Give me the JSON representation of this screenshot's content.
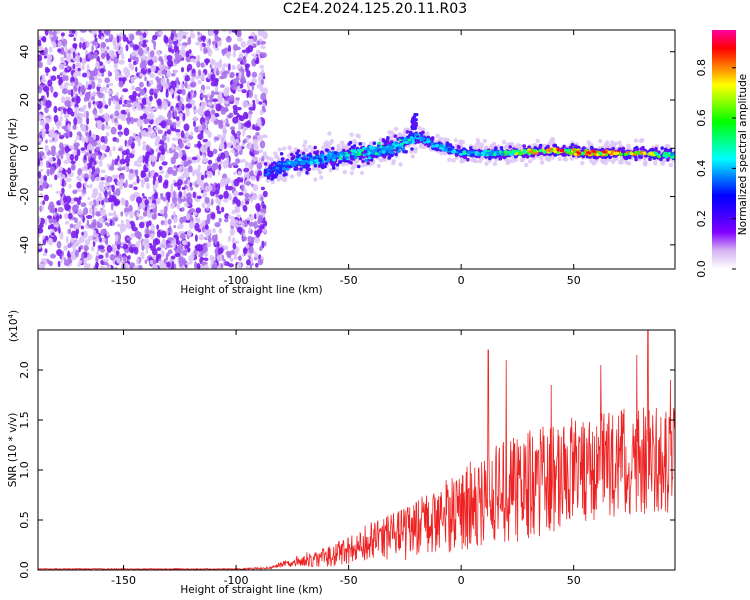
{
  "title": "C2E4.2024.125.20.11.R03",
  "colors": {
    "background": "#ffffff",
    "axis": "#000000",
    "snr_line": "#ee2222",
    "spectro_noise": "#8a2be2",
    "colorbar": [
      "#ffffff",
      "#d6b3f2",
      "#8000ff",
      "#3b00ff",
      "#0000ff",
      "#0080ff",
      "#00ffff",
      "#00ff80",
      "#00ff00",
      "#80ff00",
      "#ffff00",
      "#ff8000",
      "#ff0000",
      "#ff00a0"
    ]
  },
  "chart_data": [
    {
      "type": "heatmap",
      "xlabel": "Height of straight line (km)",
      "ylabel": "Frequency (Hz)",
      "xlim": [
        -188,
        95
      ],
      "ylim": [
        -50,
        49
      ],
      "xticks": [
        -150,
        -100,
        -50,
        0,
        50
      ],
      "yticks": [
        -40,
        -20,
        0,
        20,
        40
      ],
      "description": "spectrogram: broadband noise for x < -87 km; narrow-band signal near 0 Hz from about -87 km to 95 km, strongest (red) near 30-90 km",
      "signal_track": [
        {
          "x": -88,
          "f": -10,
          "amp": 0.4
        },
        {
          "x": -75,
          "f": -6,
          "amp": 0.45
        },
        {
          "x": -60,
          "f": -4,
          "amp": 0.5
        },
        {
          "x": -45,
          "f": -2,
          "amp": 0.55
        },
        {
          "x": -30,
          "f": 0,
          "amp": 0.55
        },
        {
          "x": -20,
          "f": 5,
          "amp": 0.5
        },
        {
          "x": -10,
          "f": 1,
          "amp": 0.5
        },
        {
          "x": 0,
          "f": -2,
          "amp": 0.5
        },
        {
          "x": 20,
          "f": -2,
          "amp": 0.6
        },
        {
          "x": 40,
          "f": -1,
          "amp": 0.85
        },
        {
          "x": 60,
          "f": -2,
          "amp": 0.85
        },
        {
          "x": 80,
          "f": -2,
          "amp": 0.8
        },
        {
          "x": 95,
          "f": -3,
          "amp": 0.6
        }
      ],
      "colorbar": {
        "label": "Normalized spectral amplitude",
        "range": [
          0,
          0.95
        ],
        "ticks": [
          "0.0",
          "0.2",
          "0.4",
          "0.6",
          "0.8"
        ]
      }
    },
    {
      "type": "line",
      "xlabel": "Height of straight line (km)",
      "ylabel": "SNR (10 * v/v)",
      "y_multiplier": "(x10",
      "y_multiplier_exp": "4",
      "y_multiplier_close": ")",
      "xlim": [
        -188,
        95
      ],
      "ylim": [
        0,
        2.4
      ],
      "xticks": [
        -150,
        -100,
        -50,
        0,
        50
      ],
      "yticks": [
        "0.0",
        "0.5",
        "1.0",
        "1.5",
        "2.0"
      ],
      "series": [
        {
          "x": [
            -188,
            -160,
            -130,
            -100,
            -85,
            -78,
            -70,
            -60,
            -50,
            -40,
            -30,
            -20,
            -10,
            0,
            10,
            20,
            30,
            40,
            50,
            60,
            70,
            80,
            90,
            95
          ],
          "mean": [
            0.01,
            0.01,
            0.01,
            0.01,
            0.02,
            0.07,
            0.1,
            0.13,
            0.2,
            0.28,
            0.33,
            0.4,
            0.52,
            0.6,
            0.7,
            0.78,
            0.85,
            0.92,
            1.0,
            1.05,
            1.08,
            1.1,
            1.12,
            1.12
          ],
          "spread": [
            0.005,
            0.005,
            0.005,
            0.005,
            0.01,
            0.04,
            0.07,
            0.1,
            0.15,
            0.2,
            0.25,
            0.3,
            0.35,
            0.42,
            0.48,
            0.52,
            0.55,
            0.55,
            0.55,
            0.55,
            0.55,
            0.55,
            0.55,
            0.55
          ],
          "peaks": [
            {
              "x": 12,
              "y": 2.2
            },
            {
              "x": 20,
              "y": 2.1
            },
            {
              "x": 40,
              "y": 1.85
            },
            {
              "x": 62,
              "y": 2.05
            },
            {
              "x": 78,
              "y": 2.15
            },
            {
              "x": 83,
              "y": 2.4
            },
            {
              "x": 93,
              "y": 1.9
            }
          ]
        }
      ]
    }
  ]
}
